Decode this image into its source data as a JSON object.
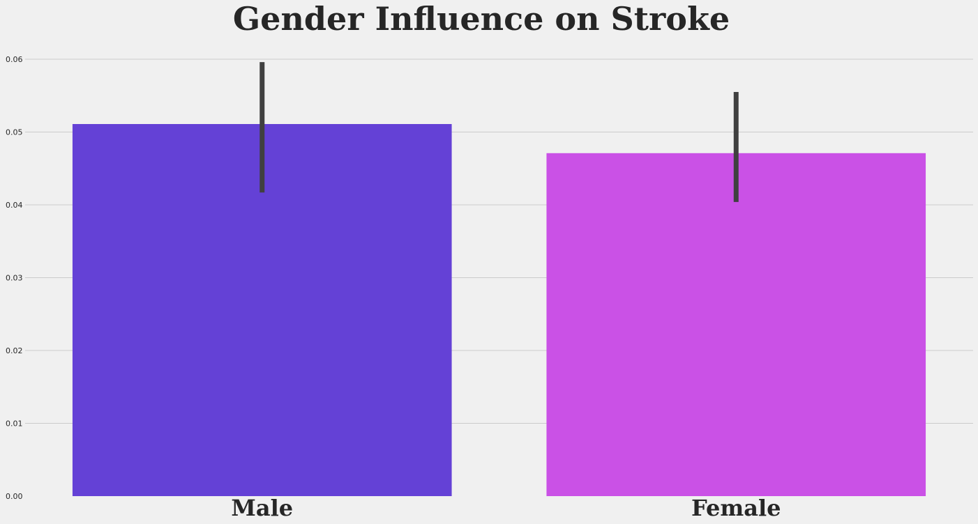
{
  "chart_data": {
    "type": "bar",
    "title": "Gender Influence on Stroke",
    "xlabel": "",
    "ylabel": "",
    "categories": [
      "Male",
      "Female"
    ],
    "values": [
      0.0511,
      0.0471
    ],
    "error_bars": [
      {
        "low": 0.0417,
        "high": 0.0596
      },
      {
        "low": 0.0404,
        "high": 0.0555
      }
    ],
    "bar_colors": [
      "#6441d6",
      "#ca51e6"
    ],
    "error_bar_color": "#404040",
    "ylim": [
      0,
      0.06
    ],
    "yticks": [
      "0.00",
      "0.01",
      "0.02",
      "0.03",
      "0.04",
      "0.05",
      "0.06"
    ],
    "grid": true,
    "grid_axis": "y",
    "background": "#f0f0f0",
    "grid_color": "#cbcbcb"
  }
}
